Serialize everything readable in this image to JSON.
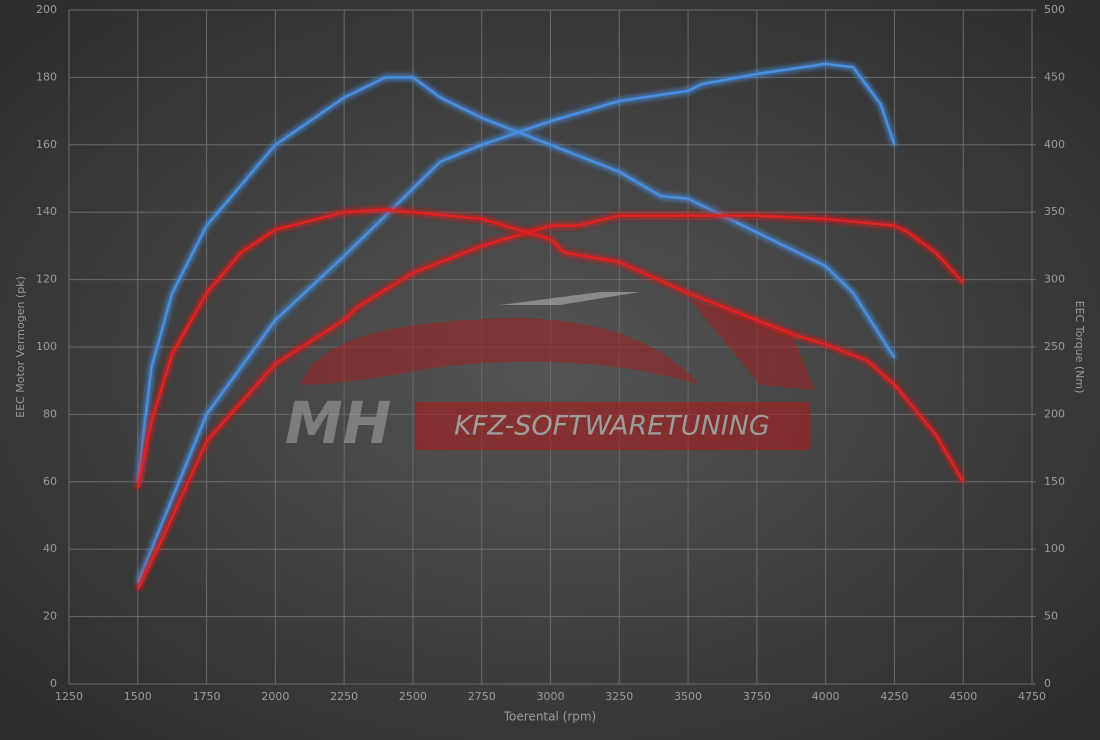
{
  "chart_data": {
    "type": "line",
    "xlabel": "Toerental (rpm)",
    "ylabel": "EEC Motor Vermogen (pk)",
    "y2label": "EEC Torque (Nm)",
    "watermark": [
      "MH",
      "KFZ-SOFTWARETUNING"
    ],
    "xlim": [
      1250,
      4750
    ],
    "xticks": [
      1250,
      1500,
      1750,
      2000,
      2250,
      2500,
      2750,
      3000,
      3250,
      3500,
      3750,
      4000,
      4250,
      4500,
      4750
    ],
    "ylim": [
      0,
      200
    ],
    "yticks": [
      0,
      20,
      40,
      60,
      80,
      100,
      120,
      140,
      160,
      180,
      200
    ],
    "y2lim": [
      0,
      500
    ],
    "y2ticks": [
      0,
      50,
      100,
      150,
      200,
      250,
      300,
      350,
      400,
      450,
      500
    ],
    "grid": true,
    "series": [
      {
        "color": "#4a8fe0",
        "x": [
          1500,
          1600,
          1750,
          2000,
          2250,
          2500,
          2600,
          2750,
          3000,
          3250,
          3500,
          3550,
          3750,
          4000,
          4100,
          4200,
          4250
        ],
        "values": [
          30,
          50,
          80,
          108,
          127,
          147,
          155,
          160,
          167,
          173,
          176,
          178,
          181,
          184,
          183,
          172,
          160
        ]
      },
      {
        "color": "#4a8fe0",
        "axis": "y2",
        "x": [
          1500,
          1550,
          1625,
          1750,
          2000,
          2250,
          2400,
          2500,
          2600,
          2750,
          3000,
          3250,
          3400,
          3500,
          3750,
          4000,
          4100,
          4250
        ],
        "values": [
          150,
          235,
          290,
          340,
          400,
          435,
          450,
          450,
          435,
          420,
          400,
          380,
          362,
          360,
          335,
          310,
          290,
          242
        ]
      },
      {
        "color": "#e02020",
        "x": [
          1500,
          1600,
          1750,
          2000,
          2250,
          2300,
          2500,
          2750,
          3000,
          3100,
          3250,
          3500,
          3750,
          4000,
          4250,
          4300,
          4400,
          4500
        ],
        "values": [
          28,
          45,
          72,
          95,
          108,
          112,
          122,
          130,
          136,
          136,
          139,
          139,
          139,
          138,
          136,
          134,
          128,
          119
        ]
      },
      {
        "color": "#e02020",
        "axis": "y2",
        "x": [
          1500,
          1550,
          1625,
          1750,
          1875,
          2000,
          2250,
          2400,
          2500,
          2750,
          3000,
          3050,
          3250,
          3500,
          3750,
          3900,
          4000,
          4150,
          4250,
          4400,
          4500
        ],
        "values": [
          145,
          195,
          245,
          290,
          320,
          337,
          350,
          352,
          350,
          345,
          330,
          320,
          313,
          290,
          270,
          258,
          252,
          240,
          222,
          185,
          150
        ]
      }
    ]
  }
}
